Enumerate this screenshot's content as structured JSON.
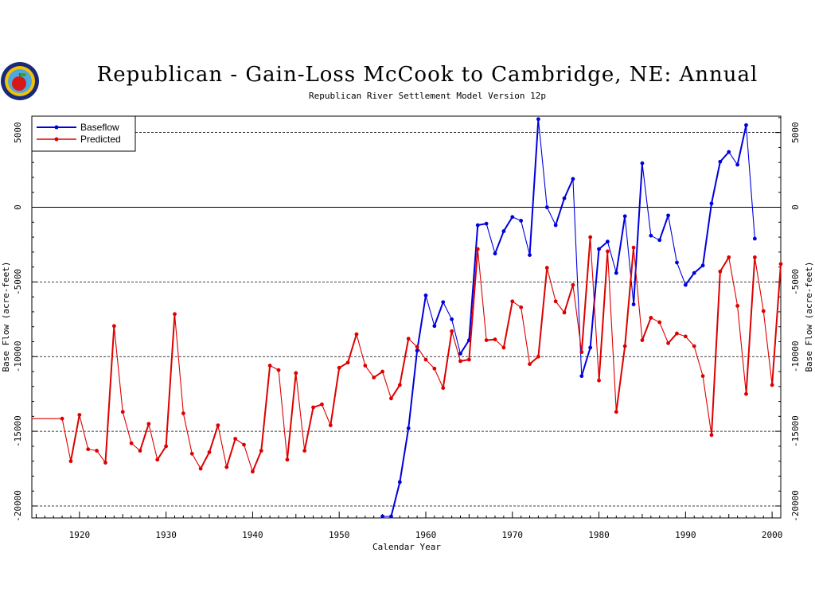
{
  "chart_data": {
    "type": "line",
    "title": "Republican - Gain-Loss McCook to Cambridge, NE: Annual",
    "subtitle": "Republican River Settlement Model Version 12p",
    "xlabel": "Calendar Year",
    "ylabel": "Base Flow (acre-feet)",
    "ylabel_right": "Base Flow (acre-feet)",
    "xlim": [
      1914.5,
      2001
    ],
    "ylim": [
      -20800,
      6100
    ],
    "x_ticks": [
      1920,
      1930,
      1940,
      1950,
      1960,
      1970,
      1980,
      1990,
      2000
    ],
    "y_ticks": [
      5000,
      0,
      -5000,
      -10000,
      -15000,
      -20000
    ],
    "dashed_gridlines": [
      5000,
      -5000,
      -10000,
      -15000,
      -20000
    ],
    "solid_gridlines": [
      0
    ],
    "grid": true,
    "legend_position": "top-left",
    "series": [
      {
        "name": "Baseflow",
        "color": "#0000dd",
        "points": [
          [
            1955,
            -20700
          ],
          [
            1956,
            -20700
          ],
          [
            1957,
            -18400
          ],
          [
            1958,
            -14800
          ],
          [
            1959,
            -9600
          ],
          [
            1960,
            -5900
          ],
          [
            1961,
            -7950
          ],
          [
            1962,
            -6350
          ],
          [
            1963,
            -7500
          ],
          [
            1964,
            -9800
          ],
          [
            1965,
            -8900
          ],
          [
            1966,
            -1200
          ],
          [
            1967,
            -1100
          ],
          [
            1968,
            -3100
          ],
          [
            1969,
            -1600
          ],
          [
            1970,
            -650
          ],
          [
            1971,
            -900
          ],
          [
            1972,
            -3200
          ],
          [
            1973,
            5900
          ],
          [
            1974,
            0
          ],
          [
            1975,
            -1200
          ],
          [
            1976,
            600
          ],
          [
            1977,
            1900
          ],
          [
            1978,
            -11300
          ],
          [
            1979,
            -9400
          ],
          [
            1980,
            -2800
          ],
          [
            1981,
            -2300
          ],
          [
            1982,
            -4400
          ],
          [
            1983,
            -600
          ],
          [
            1984,
            -6500
          ],
          [
            1985,
            2950
          ],
          [
            1986,
            -1900
          ],
          [
            1987,
            -2200
          ],
          [
            1988,
            -550
          ],
          [
            1989,
            -3700
          ],
          [
            1990,
            -5200
          ],
          [
            1991,
            -4400
          ],
          [
            1992,
            -3900
          ],
          [
            1993,
            250
          ],
          [
            1994,
            3050
          ],
          [
            1995,
            3700
          ],
          [
            1996,
            2850
          ],
          [
            1997,
            5500
          ],
          [
            1998,
            -2100
          ]
        ]
      },
      {
        "name": "Predicted",
        "color": "#dd0000",
        "points": [
          [
            1914.5,
            -14150
          ],
          [
            1918,
            -14150
          ],
          [
            1919,
            -17000
          ],
          [
            1920,
            -13900
          ],
          [
            1921,
            -16200
          ],
          [
            1922,
            -16300
          ],
          [
            1923,
            -17100
          ],
          [
            1924,
            -7950
          ],
          [
            1925,
            -13700
          ],
          [
            1926,
            -15800
          ],
          [
            1927,
            -16300
          ],
          [
            1928,
            -14500
          ],
          [
            1929,
            -16900
          ],
          [
            1930,
            -16000
          ],
          [
            1931,
            -7150
          ],
          [
            1932,
            -13800
          ],
          [
            1933,
            -16500
          ],
          [
            1934,
            -17500
          ],
          [
            1935,
            -16400
          ],
          [
            1936,
            -14600
          ],
          [
            1937,
            -17400
          ],
          [
            1938,
            -15500
          ],
          [
            1939,
            -15900
          ],
          [
            1940,
            -17700
          ],
          [
            1941,
            -16300
          ],
          [
            1942,
            -10600
          ],
          [
            1943,
            -10900
          ],
          [
            1944,
            -16900
          ],
          [
            1945,
            -11100
          ],
          [
            1946,
            -16300
          ],
          [
            1947,
            -13400
          ],
          [
            1948,
            -13200
          ],
          [
            1949,
            -14600
          ],
          [
            1950,
            -10750
          ],
          [
            1951,
            -10400
          ],
          [
            1952,
            -8500
          ],
          [
            1953,
            -10600
          ],
          [
            1954,
            -11400
          ],
          [
            1955,
            -11000
          ],
          [
            1956,
            -12800
          ],
          [
            1957,
            -11900
          ],
          [
            1958,
            -8800
          ],
          [
            1959,
            -9350
          ],
          [
            1960,
            -10200
          ],
          [
            1961,
            -10800
          ],
          [
            1962,
            -12100
          ],
          [
            1963,
            -8300
          ],
          [
            1964,
            -10300
          ],
          [
            1965,
            -10200
          ],
          [
            1966,
            -2800
          ],
          [
            1967,
            -8900
          ],
          [
            1968,
            -8850
          ],
          [
            1969,
            -9400
          ],
          [
            1970,
            -6300
          ],
          [
            1971,
            -6700
          ],
          [
            1972,
            -10500
          ],
          [
            1973,
            -10000
          ],
          [
            1974,
            -4050
          ],
          [
            1975,
            -6300
          ],
          [
            1976,
            -7050
          ],
          [
            1977,
            -5200
          ],
          [
            1978,
            -9700
          ],
          [
            1979,
            -2000
          ],
          [
            1980,
            -11600
          ],
          [
            1981,
            -2950
          ],
          [
            1982,
            -13700
          ],
          [
            1983,
            -9300
          ],
          [
            1984,
            -2700
          ],
          [
            1985,
            -8900
          ],
          [
            1986,
            -7400
          ],
          [
            1987,
            -7700
          ],
          [
            1988,
            -9100
          ],
          [
            1989,
            -8450
          ],
          [
            1990,
            -8650
          ],
          [
            1991,
            -9300
          ],
          [
            1992,
            -11300
          ],
          [
            1993,
            -15250
          ],
          [
            1994,
            -4300
          ],
          [
            1995,
            -3350
          ],
          [
            1996,
            -6600
          ],
          [
            1997,
            -12500
          ],
          [
            1998,
            -3350
          ],
          [
            1999,
            -6950
          ],
          [
            2000,
            -11900
          ],
          [
            2001,
            -3800
          ]
        ]
      }
    ]
  }
}
